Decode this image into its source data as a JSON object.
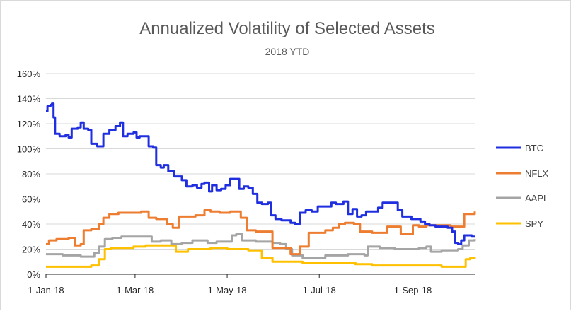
{
  "chart_data": {
    "type": "line",
    "title": "Annualized Volatility of Selected Assets",
    "subtitle": "2018 YTD",
    "xlabel": "",
    "ylabel": "",
    "x_ticks": [
      "1-Jan-18",
      "1-Mar-18",
      "1-May-18",
      "1-Jul-18",
      "1-Sep-18"
    ],
    "y_ticks": [
      "0%",
      "20%",
      "40%",
      "60%",
      "80%",
      "100%",
      "120%",
      "140%",
      "160%"
    ],
    "ylim": [
      0,
      160
    ],
    "xlim": [
      "2018-01-01",
      "2018-10-12"
    ],
    "grid": true,
    "legend_position": "right",
    "series": [
      {
        "name": "BTC",
        "color": "#1f2fe0",
        "points": [
          [
            "2018-01-01",
            130
          ],
          [
            "2018-01-02",
            134
          ],
          [
            "2018-01-04",
            135
          ],
          [
            "2018-01-05",
            136
          ],
          [
            "2018-01-06",
            125
          ],
          [
            "2018-01-07",
            112
          ],
          [
            "2018-01-10",
            110
          ],
          [
            "2018-01-14",
            111
          ],
          [
            "2018-01-16",
            109
          ],
          [
            "2018-01-18",
            116
          ],
          [
            "2018-01-22",
            117
          ],
          [
            "2018-01-24",
            121
          ],
          [
            "2018-01-26",
            116
          ],
          [
            "2018-01-29",
            115
          ],
          [
            "2018-01-31",
            104
          ],
          [
            "2018-02-04",
            102
          ],
          [
            "2018-02-08",
            112
          ],
          [
            "2018-02-12",
            115
          ],
          [
            "2018-02-16",
            118
          ],
          [
            "2018-02-19",
            121
          ],
          [
            "2018-02-21",
            110
          ],
          [
            "2018-02-24",
            112
          ],
          [
            "2018-02-28",
            113
          ],
          [
            "2018-03-02",
            109
          ],
          [
            "2018-03-04",
            110
          ],
          [
            "2018-03-08",
            110
          ],
          [
            "2018-03-10",
            102
          ],
          [
            "2018-03-13",
            101
          ],
          [
            "2018-03-15",
            87
          ],
          [
            "2018-03-18",
            85
          ],
          [
            "2018-03-20",
            87
          ],
          [
            "2018-03-23",
            82
          ],
          [
            "2018-03-27",
            78
          ],
          [
            "2018-04-01",
            75
          ],
          [
            "2018-04-04",
            70
          ],
          [
            "2018-04-08",
            71
          ],
          [
            "2018-04-11",
            69
          ],
          [
            "2018-04-14",
            72
          ],
          [
            "2018-04-16",
            73
          ],
          [
            "2018-04-19",
            66
          ],
          [
            "2018-04-21",
            71
          ],
          [
            "2018-04-24",
            67
          ],
          [
            "2018-04-27",
            68
          ],
          [
            "2018-04-30",
            71
          ],
          [
            "2018-05-03",
            76
          ],
          [
            "2018-05-06",
            76
          ],
          [
            "2018-05-09",
            68
          ],
          [
            "2018-05-12",
            70
          ],
          [
            "2018-05-15",
            69
          ],
          [
            "2018-05-18",
            64
          ],
          [
            "2018-05-21",
            57
          ],
          [
            "2018-05-24",
            56
          ],
          [
            "2018-05-28",
            57
          ],
          [
            "2018-05-30",
            47
          ],
          [
            "2018-06-02",
            44
          ],
          [
            "2018-06-06",
            43
          ],
          [
            "2018-06-09",
            43
          ],
          [
            "2018-06-12",
            41
          ],
          [
            "2018-06-15",
            40
          ],
          [
            "2018-06-18",
            49
          ],
          [
            "2018-06-22",
            51
          ],
          [
            "2018-06-26",
            50
          ],
          [
            "2018-06-30",
            54
          ],
          [
            "2018-07-05",
            54
          ],
          [
            "2018-07-09",
            57
          ],
          [
            "2018-07-12",
            56
          ],
          [
            "2018-07-15",
            56
          ],
          [
            "2018-07-17",
            58
          ],
          [
            "2018-07-20",
            48
          ],
          [
            "2018-07-23",
            52
          ],
          [
            "2018-07-26",
            46
          ],
          [
            "2018-07-29",
            47
          ],
          [
            "2018-08-01",
            50
          ],
          [
            "2018-08-05",
            50
          ],
          [
            "2018-08-09",
            53
          ],
          [
            "2018-08-12",
            57
          ],
          [
            "2018-08-18",
            57
          ],
          [
            "2018-08-22",
            51
          ],
          [
            "2018-08-25",
            46
          ],
          [
            "2018-08-28",
            46
          ],
          [
            "2018-08-31",
            44
          ],
          [
            "2018-09-03",
            44
          ],
          [
            "2018-09-06",
            42
          ],
          [
            "2018-09-09",
            40
          ],
          [
            "2018-09-12",
            39
          ],
          [
            "2018-09-16",
            38
          ],
          [
            "2018-09-20",
            38
          ],
          [
            "2018-09-24",
            37
          ],
          [
            "2018-09-27",
            34
          ],
          [
            "2018-09-29",
            25
          ],
          [
            "2018-10-01",
            24
          ],
          [
            "2018-10-03",
            27
          ],
          [
            "2018-10-05",
            31
          ],
          [
            "2018-10-08",
            31
          ],
          [
            "2018-10-10",
            30
          ],
          [
            "2018-10-12",
            30
          ]
        ]
      },
      {
        "name": "NFLX",
        "color": "#ed7d31",
        "points": [
          [
            "2018-01-01",
            24
          ],
          [
            "2018-01-03",
            27
          ],
          [
            "2018-01-08",
            28
          ],
          [
            "2018-01-16",
            29
          ],
          [
            "2018-01-20",
            23
          ],
          [
            "2018-01-24",
            24
          ],
          [
            "2018-01-26",
            35
          ],
          [
            "2018-01-31",
            36
          ],
          [
            "2018-02-05",
            40
          ],
          [
            "2018-02-08",
            45
          ],
          [
            "2018-02-12",
            48
          ],
          [
            "2018-02-18",
            49
          ],
          [
            "2018-02-25",
            49
          ],
          [
            "2018-03-05",
            50
          ],
          [
            "2018-03-10",
            45
          ],
          [
            "2018-03-15",
            44
          ],
          [
            "2018-03-18",
            44
          ],
          [
            "2018-03-22",
            40
          ],
          [
            "2018-03-26",
            37
          ],
          [
            "2018-03-30",
            46
          ],
          [
            "2018-04-05",
            46
          ],
          [
            "2018-04-10",
            47
          ],
          [
            "2018-04-16",
            51
          ],
          [
            "2018-04-20",
            50
          ],
          [
            "2018-04-26",
            49
          ],
          [
            "2018-05-03",
            50
          ],
          [
            "2018-05-10",
            45
          ],
          [
            "2018-05-14",
            35
          ],
          [
            "2018-05-20",
            34
          ],
          [
            "2018-05-28",
            34
          ],
          [
            "2018-05-31",
            21
          ],
          [
            "2018-06-05",
            21
          ],
          [
            "2018-06-09",
            21
          ],
          [
            "2018-06-12",
            16
          ],
          [
            "2018-06-18",
            22
          ],
          [
            "2018-06-24",
            33
          ],
          [
            "2018-06-28",
            33
          ],
          [
            "2018-07-05",
            35
          ],
          [
            "2018-07-10",
            37
          ],
          [
            "2018-07-14",
            40
          ],
          [
            "2018-07-18",
            41
          ],
          [
            "2018-07-24",
            40
          ],
          [
            "2018-07-28",
            34
          ],
          [
            "2018-08-05",
            33
          ],
          [
            "2018-08-10",
            33
          ],
          [
            "2018-08-15",
            38
          ],
          [
            "2018-08-20",
            38
          ],
          [
            "2018-08-24",
            32
          ],
          [
            "2018-08-28",
            32
          ],
          [
            "2018-09-01",
            39
          ],
          [
            "2018-09-05",
            38
          ],
          [
            "2018-09-10",
            39
          ],
          [
            "2018-09-15",
            39
          ],
          [
            "2018-09-20",
            39
          ],
          [
            "2018-09-26",
            38
          ],
          [
            "2018-10-01",
            38
          ],
          [
            "2018-10-05",
            48
          ],
          [
            "2018-10-12",
            50
          ]
        ]
      },
      {
        "name": "AAPL",
        "color": "#a5a5a5",
        "points": [
          [
            "2018-01-01",
            16
          ],
          [
            "2018-01-08",
            16
          ],
          [
            "2018-01-12",
            15
          ],
          [
            "2018-01-20",
            15
          ],
          [
            "2018-01-24",
            14
          ],
          [
            "2018-02-02",
            17
          ],
          [
            "2018-02-05",
            22
          ],
          [
            "2018-02-09",
            28
          ],
          [
            "2018-02-14",
            29
          ],
          [
            "2018-02-20",
            30
          ],
          [
            "2018-03-08",
            30
          ],
          [
            "2018-03-12",
            26
          ],
          [
            "2018-03-18",
            27
          ],
          [
            "2018-03-25",
            24
          ],
          [
            "2018-04-01",
            25
          ],
          [
            "2018-04-08",
            27
          ],
          [
            "2018-04-18",
            25
          ],
          [
            "2018-04-24",
            26
          ],
          [
            "2018-05-01",
            26
          ],
          [
            "2018-05-04",
            31
          ],
          [
            "2018-05-07",
            32
          ],
          [
            "2018-05-11",
            27
          ],
          [
            "2018-05-20",
            26
          ],
          [
            "2018-05-31",
            25
          ],
          [
            "2018-06-05",
            24
          ],
          [
            "2018-06-09",
            20
          ],
          [
            "2018-06-13",
            15
          ],
          [
            "2018-06-20",
            13
          ],
          [
            "2018-06-30",
            13
          ],
          [
            "2018-07-05",
            15
          ],
          [
            "2018-07-12",
            15
          ],
          [
            "2018-07-20",
            16
          ],
          [
            "2018-07-31",
            15
          ],
          [
            "2018-08-02",
            22
          ],
          [
            "2018-08-10",
            21
          ],
          [
            "2018-08-20",
            20
          ],
          [
            "2018-08-28",
            20
          ],
          [
            "2018-09-05",
            21
          ],
          [
            "2018-09-10",
            22
          ],
          [
            "2018-09-13",
            18
          ],
          [
            "2018-09-20",
            19
          ],
          [
            "2018-09-26",
            19
          ],
          [
            "2018-10-01",
            20
          ],
          [
            "2018-10-04",
            23
          ],
          [
            "2018-10-08",
            27
          ],
          [
            "2018-10-12",
            28
          ]
        ]
      },
      {
        "name": "SPY",
        "color": "#ffc000",
        "points": [
          [
            "2018-01-01",
            6
          ],
          [
            "2018-01-31",
            7
          ],
          [
            "2018-02-05",
            12
          ],
          [
            "2018-02-09",
            20
          ],
          [
            "2018-02-13",
            21
          ],
          [
            "2018-02-28",
            22
          ],
          [
            "2018-03-08",
            23
          ],
          [
            "2018-03-23",
            23
          ],
          [
            "2018-03-28",
            18
          ],
          [
            "2018-04-05",
            20
          ],
          [
            "2018-04-20",
            21
          ],
          [
            "2018-05-01",
            20
          ],
          [
            "2018-05-15",
            19
          ],
          [
            "2018-05-24",
            13
          ],
          [
            "2018-05-31",
            10
          ],
          [
            "2018-06-12",
            10
          ],
          [
            "2018-06-20",
            9
          ],
          [
            "2018-06-30",
            9
          ],
          [
            "2018-07-15",
            9
          ],
          [
            "2018-07-25",
            8
          ],
          [
            "2018-08-05",
            7
          ],
          [
            "2018-08-20",
            7
          ],
          [
            "2018-09-05",
            7
          ],
          [
            "2018-09-20",
            6
          ],
          [
            "2018-09-28",
            6
          ],
          [
            "2018-10-03",
            6
          ],
          [
            "2018-10-06",
            12
          ],
          [
            "2018-10-09",
            13
          ],
          [
            "2018-10-12",
            14
          ]
        ]
      }
    ]
  }
}
